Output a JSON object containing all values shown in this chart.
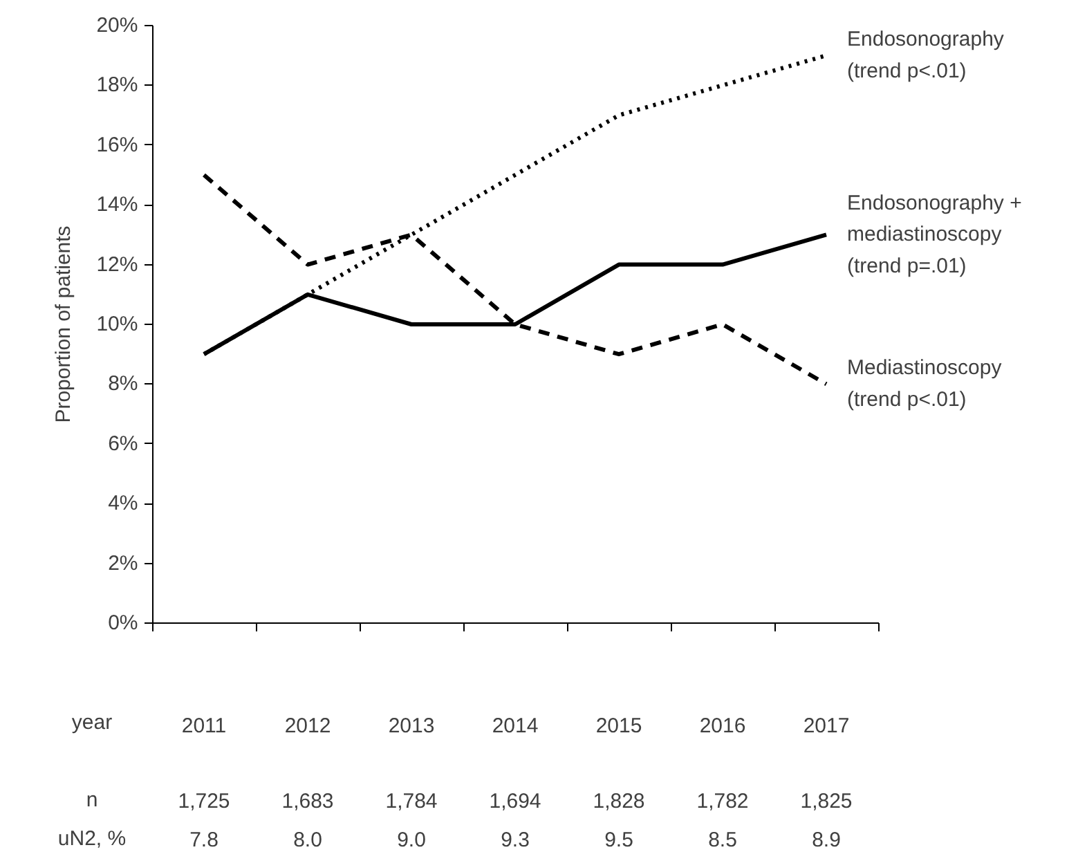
{
  "chart_data": {
    "type": "line",
    "ylabel": "Proportion of patients",
    "xlabel": "year",
    "categories": [
      "2011",
      "2012",
      "2013",
      "2014",
      "2015",
      "2016",
      "2017"
    ],
    "series": [
      {
        "name": "Endosonography\n(trend p<.01)",
        "color": "#000000",
        "line_style": "dotted",
        "values": [
          9,
          11,
          13,
          15,
          17,
          18,
          19
        ]
      },
      {
        "name": "Endosonography +\nmediastinoscopy\n(trend p=.01)",
        "color": "#000000",
        "line_style": "solid",
        "values": [
          9,
          11,
          10,
          10,
          12,
          12,
          13
        ]
      },
      {
        "name": "Mediastinoscopy\n(trend p<.01)",
        "color": "#000000",
        "line_style": "dashed",
        "values": [
          15,
          12,
          13,
          10,
          9,
          10,
          8
        ]
      }
    ],
    "ylim": [
      0,
      20
    ],
    "yticks": [
      {
        "value": 0,
        "label": "0%"
      },
      {
        "value": 2,
        "label": "2%"
      },
      {
        "value": 4,
        "label": "4%"
      },
      {
        "value": 6,
        "label": "6%"
      },
      {
        "value": 8,
        "label": "8%"
      },
      {
        "value": 10,
        "label": "10%"
      },
      {
        "value": 12,
        "label": "12%"
      },
      {
        "value": 14,
        "label": "14%"
      },
      {
        "value": 16,
        "label": "16%"
      },
      {
        "value": 18,
        "label": "18%"
      },
      {
        "value": 20,
        "label": "20%"
      }
    ],
    "annotations": [
      "n",
      "1,725",
      "1,683",
      "1,784",
      "1,694",
      "1,828",
      "1,782",
      "1,825",
      "uN2, %",
      "7.8",
      "8.0",
      "9.0",
      "9.3",
      "9.5",
      "8.5",
      "8.9"
    ],
    "grid": false,
    "legend": false
  }
}
